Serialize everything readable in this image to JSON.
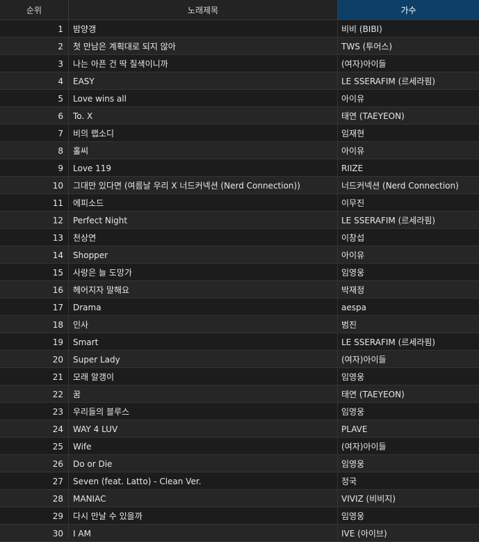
{
  "headers": {
    "rank": "순위",
    "title": "노래제목",
    "artist": "가수"
  },
  "colors": {
    "background": "#1f1f1f",
    "selected_header": "#0e3f66",
    "grid_line": "#343434",
    "text": "#e8e8e8"
  },
  "rows": [
    {
      "rank": "1",
      "title": "밤양갱",
      "artist": "비비 (BIBI)"
    },
    {
      "rank": "2",
      "title": "첫 만남은 계획대로 되지 않아",
      "artist": "TWS (투어스)"
    },
    {
      "rank": "3",
      "title": "나는 아픈 건 딱 질색이니까",
      "artist": "(여자)아이들"
    },
    {
      "rank": "4",
      "title": "EASY",
      "artist": "LE SSERAFIM (르세라핌)"
    },
    {
      "rank": "5",
      "title": "Love wins all",
      "artist": "아이유"
    },
    {
      "rank": "6",
      "title": "To. X",
      "artist": "태연 (TAEYEON)"
    },
    {
      "rank": "7",
      "title": "비의 랩소디",
      "artist": "임재현"
    },
    {
      "rank": "8",
      "title": "홀씨",
      "artist": "아이유"
    },
    {
      "rank": "9",
      "title": "Love 119",
      "artist": "RIIZE"
    },
    {
      "rank": "10",
      "title": "그대만 있다면 (여름날 우리 X 너드커넥션 (Nerd Connection))",
      "artist": "너드커넥션 (Nerd Connection)"
    },
    {
      "rank": "11",
      "title": "에피소드",
      "artist": "이무진"
    },
    {
      "rank": "12",
      "title": "Perfect Night",
      "artist": "LE SSERAFIM (르세라핌)"
    },
    {
      "rank": "13",
      "title": "천상연",
      "artist": "이창섭"
    },
    {
      "rank": "14",
      "title": "Shopper",
      "artist": "아이유"
    },
    {
      "rank": "15",
      "title": "사랑은 늘 도망가",
      "artist": "임영웅"
    },
    {
      "rank": "16",
      "title": "헤어지자 말해요",
      "artist": "박재정"
    },
    {
      "rank": "17",
      "title": "Drama",
      "artist": "aespa"
    },
    {
      "rank": "18",
      "title": "인사",
      "artist": "범진"
    },
    {
      "rank": "19",
      "title": "Smart",
      "artist": "LE SSERAFIM (르세라핌)"
    },
    {
      "rank": "20",
      "title": "Super Lady",
      "artist": "(여자)아이들"
    },
    {
      "rank": "21",
      "title": "모래 알갱이",
      "artist": "임영웅"
    },
    {
      "rank": "22",
      "title": "꿈",
      "artist": "태연 (TAEYEON)"
    },
    {
      "rank": "23",
      "title": "우리들의 블루스",
      "artist": "임영웅"
    },
    {
      "rank": "24",
      "title": "WAY 4 LUV",
      "artist": "PLAVE"
    },
    {
      "rank": "25",
      "title": "Wife",
      "artist": "(여자)아이들"
    },
    {
      "rank": "26",
      "title": "Do or Die",
      "artist": "임영웅"
    },
    {
      "rank": "27",
      "title": "Seven (feat. Latto) - Clean Ver.",
      "artist": "정국"
    },
    {
      "rank": "28",
      "title": "MANIAC",
      "artist": "VIVIZ (비비지)"
    },
    {
      "rank": "29",
      "title": "다시 만날 수 있을까",
      "artist": "임영웅"
    },
    {
      "rank": "30",
      "title": "I AM",
      "artist": "IVE (아이브)"
    }
  ]
}
